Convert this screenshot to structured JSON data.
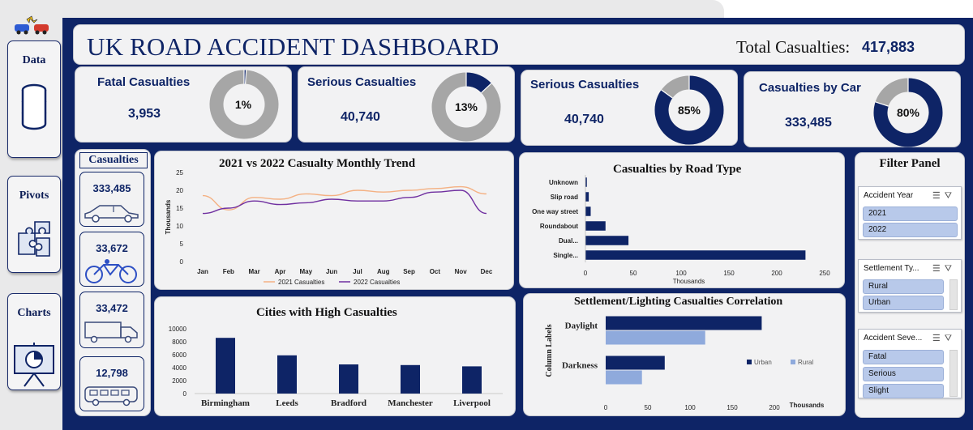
{
  "nav": {
    "items": [
      {
        "label": "Data",
        "icon": "database-icon"
      },
      {
        "label": "Pivots",
        "icon": "puzzle-icon"
      },
      {
        "label": "Charts",
        "icon": "presentation-chart-icon"
      }
    ]
  },
  "header": {
    "title": "UK ROAD ACCIDENT DASHBOARD",
    "total_label": "Total Casualties:",
    "total_value": "417,883"
  },
  "kpis": [
    {
      "title": "Fatal Casualties",
      "value": "3,953",
      "pct_label": "1%",
      "pct": 1
    },
    {
      "title": "Serious Casualties",
      "value": "40,740",
      "pct_label": "13%",
      "pct": 13
    },
    {
      "title": "Serious Casualties",
      "value": "40,740",
      "pct_label": "85%",
      "pct": 85
    },
    {
      "title": "Casualties by Car",
      "value": "333,485",
      "pct_label": "80%",
      "pct": 80
    }
  ],
  "vehicles": {
    "header": "Casualties",
    "items": [
      {
        "value": "333,485",
        "icon": "car-icon"
      },
      {
        "value": "33,672",
        "icon": "bicycle-icon"
      },
      {
        "value": "33,472",
        "icon": "truck-icon"
      },
      {
        "value": "12,798",
        "icon": "bus-icon"
      }
    ]
  },
  "filter_panel": {
    "title": "Filter Panel",
    "slicers": [
      {
        "header": "Accident Year",
        "items": [
          "2021",
          "2022"
        ]
      },
      {
        "header": "Settlement Ty...",
        "items": [
          "Rural",
          "Urban"
        ]
      },
      {
        "header": "Accident Seve...",
        "items": [
          "Fatal",
          "Serious",
          "Slight"
        ]
      }
    ]
  },
  "colors": {
    "navy": "#0e2466",
    "grey": "#a6a6a6",
    "orange": "#f4b183",
    "purple": "#7030a0",
    "light_blue": "#8faadc"
  },
  "chart_data": [
    {
      "type": "line",
      "title": "2021 vs 2022 Casualty Monthly Trend",
      "ylabel": "Thousands",
      "ylim": [
        0,
        25
      ],
      "yticks": [
        0,
        5,
        10,
        15,
        20,
        25
      ],
      "categories": [
        "Jan",
        "Feb",
        "Mar",
        "Apr",
        "May",
        "Jun",
        "Jul",
        "Aug",
        "Sep",
        "Oct",
        "Nov",
        "Dec"
      ],
      "series": [
        {
          "name": "2021 Casualties",
          "values": [
            18.5,
            14.5,
            18.0,
            17.5,
            19.0,
            18.5,
            20.0,
            19.5,
            20.0,
            20.5,
            21.0,
            19.0
          ]
        },
        {
          "name": "2022 Casualties",
          "values": [
            13.5,
            15.0,
            17.0,
            16.0,
            16.5,
            17.5,
            17.0,
            17.0,
            18.0,
            19.5,
            20.0,
            13.5
          ]
        }
      ],
      "legend": "bottom"
    },
    {
      "type": "bar",
      "orientation": "horizontal",
      "title": "Casualties by Road Type",
      "xlabel": "Thousands",
      "xlim": [
        0,
        250
      ],
      "xticks": [
        0,
        50,
        100,
        150,
        200,
        250
      ],
      "categories": [
        "Unknown",
        "Slip road",
        "One way street",
        "Roundabout",
        "Dual...",
        "Single..."
      ],
      "values": [
        1.5,
        3.5,
        5.5,
        21,
        45,
        230
      ]
    },
    {
      "type": "bar",
      "title": "Cities with High Casualties",
      "ylim": [
        0,
        10000
      ],
      "yticks": [
        0,
        2000,
        4000,
        6000,
        8000,
        10000
      ],
      "categories": [
        "Birmingham",
        "Leeds",
        "Bradford",
        "Manchester",
        "Liverpool"
      ],
      "values": [
        8600,
        5900,
        4500,
        4400,
        4200
      ]
    },
    {
      "type": "bar",
      "orientation": "horizontal",
      "title": "Settlement/Lighting Casualties Correlation",
      "ylabel": "Column Labels",
      "xlabel": "Thousands",
      "xlim": [
        0,
        200
      ],
      "xticks": [
        0,
        50,
        100,
        150,
        200
      ],
      "categories": [
        "Daylight",
        "Darkness"
      ],
      "series": [
        {
          "name": "Urban",
          "values": [
            185,
            70
          ]
        },
        {
          "name": "Rural",
          "values": [
            118,
            43
          ]
        }
      ],
      "legend": "right"
    }
  ]
}
